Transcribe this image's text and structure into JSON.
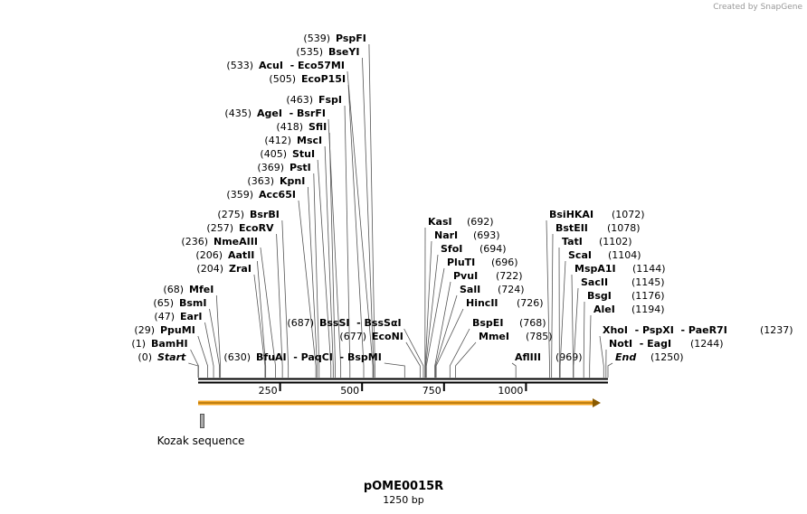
{
  "credit": "Created by SnapGene",
  "title": "pOME0015R",
  "subtitle": "1250 bp",
  "scale": {
    "length": 1250,
    "ticks": [
      250,
      500,
      750,
      1000
    ]
  },
  "feature": {
    "label": "Kozak sequence"
  },
  "sites": [
    {
      "label": "PspFI",
      "pos": 539,
      "pos_label": "(539)"
    },
    {
      "label": "BseYI",
      "pos": 535,
      "pos_label": "(535)"
    },
    {
      "label": "AcuI  - Eco57MI",
      "pos": 533,
      "pos_label": "(533)"
    },
    {
      "label": "EcoP15I",
      "pos": 505,
      "pos_label": "(505)"
    },
    {
      "label": "FspI",
      "pos": 463,
      "pos_label": "(463)"
    },
    {
      "label": "AgeI  - BsrFI",
      "pos": 435,
      "pos_label": "(435)"
    },
    {
      "label": "SfiI",
      "pos": 418,
      "pos_label": "(418)"
    },
    {
      "label": "MscI",
      "pos": 412,
      "pos_label": "(412)"
    },
    {
      "label": "StuI",
      "pos": 405,
      "pos_label": "(405)"
    },
    {
      "label": "PstI",
      "pos": 369,
      "pos_label": "(369)"
    },
    {
      "label": "KpnI",
      "pos": 363,
      "pos_label": "(363)"
    },
    {
      "label": "Acc65I",
      "pos": 359,
      "pos_label": "(359)"
    },
    {
      "label": "BsrBI",
      "pos": 275,
      "pos_label": "(275)"
    },
    {
      "label": "EcoRV",
      "pos": 257,
      "pos_label": "(257)"
    },
    {
      "label": "NmeAIII",
      "pos": 236,
      "pos_label": "(236)"
    },
    {
      "label": "AatII",
      "pos": 206,
      "pos_label": "(206)"
    },
    {
      "label": "ZraI",
      "pos": 204,
      "pos_label": "(204)"
    },
    {
      "label": "MfeI",
      "pos": 68,
      "pos_label": "(68)"
    },
    {
      "label": "BsmI",
      "pos": 65,
      "pos_label": "(65)"
    },
    {
      "label": "EarI",
      "pos": 47,
      "pos_label": "(47)"
    },
    {
      "label": "PpuMI",
      "pos": 29,
      "pos_label": "(29)"
    },
    {
      "label": "BamHI",
      "pos": 1,
      "pos_label": "(1)"
    },
    {
      "label": "Start",
      "pos": 0,
      "pos_label": "(0)"
    },
    {
      "label": "BfuAI  - PaqCI  - BspMI",
      "pos": 630,
      "pos_label": "(630)"
    },
    {
      "label": "BssSI  - BssSαI",
      "pos": 687,
      "pos_label": "(687)"
    },
    {
      "label": "EcoNI",
      "pos": 677,
      "pos_label": "(677)"
    },
    {
      "label": "KasI",
      "pos": 692,
      "pos_label": "(692)"
    },
    {
      "label": "NarI",
      "pos": 693,
      "pos_label": "(693)"
    },
    {
      "label": "SfoI",
      "pos": 694,
      "pos_label": "(694)"
    },
    {
      "label": "PluTI",
      "pos": 696,
      "pos_label": "(696)"
    },
    {
      "label": "PvuI",
      "pos": 722,
      "pos_label": "(722)"
    },
    {
      "label": "SalI",
      "pos": 724,
      "pos_label": "(724)"
    },
    {
      "label": "HincII",
      "pos": 726,
      "pos_label": "(726)"
    },
    {
      "label": "BspEI",
      "pos": 768,
      "pos_label": "(768)"
    },
    {
      "label": "MmeI",
      "pos": 785,
      "pos_label": "(785)"
    },
    {
      "label": "AflIII",
      "pos": 969,
      "pos_label": "(969)"
    },
    {
      "label": "BsiHKAI",
      "pos": 1072,
      "pos_label": "(1072)"
    },
    {
      "label": "BstEII",
      "pos": 1078,
      "pos_label": "(1078)"
    },
    {
      "label": "TatI",
      "pos": 1102,
      "pos_label": "(1102)"
    },
    {
      "label": "ScaI",
      "pos": 1104,
      "pos_label": "(1104)"
    },
    {
      "label": "MspA1I",
      "pos": 1144,
      "pos_label": "(1144)"
    },
    {
      "label": "SacII",
      "pos": 1145,
      "pos_label": "(1145)"
    },
    {
      "label": "BsgI",
      "pos": 1176,
      "pos_label": "(1176)"
    },
    {
      "label": "AleI",
      "pos": 1194,
      "pos_label": "(1194)"
    },
    {
      "label": "XhoI  - PspXI  - PaeR7I",
      "pos": 1237,
      "pos_label": "(1237)"
    },
    {
      "label": "NotI  - EagI",
      "pos": 1244,
      "pos_label": "(1244)"
    },
    {
      "label": "End",
      "pos": 1250,
      "pos_label": "(1250)"
    }
  ]
}
